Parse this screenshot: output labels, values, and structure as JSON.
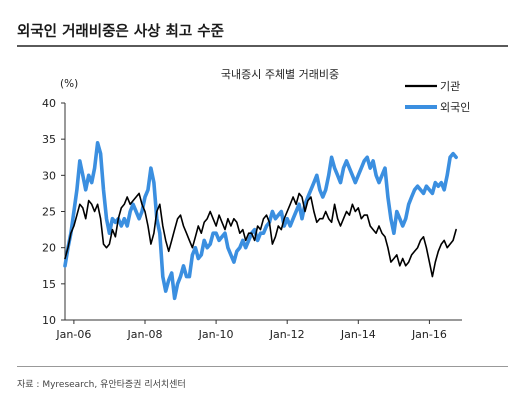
{
  "page": {
    "title": "외국인 거래비중은 사상 최고 수준",
    "source": "자료 : Myresearch, 유안타증권 리서치센터"
  },
  "colors": {
    "institution": "#000000",
    "foreign": "#3b8fe0",
    "axis": "#333333"
  },
  "chart_data": {
    "type": "line",
    "title": "국내증시 주체별 거래비중",
    "unit_label": "(%)",
    "ylim": [
      10,
      40
    ],
    "y_ticks": [
      10,
      15,
      20,
      25,
      30,
      35,
      40
    ],
    "x_range": [
      "2005-10",
      "2016-12"
    ],
    "x_ticks": [
      "Jan-06",
      "Jan-08",
      "Jan-10",
      "Jan-12",
      "Jan-14",
      "Jan-16"
    ],
    "legend_position": "top-right",
    "grid": false,
    "series": [
      {
        "name": "기관",
        "color": "#000000",
        "points": [
          [
            "2005-10",
            18.5
          ],
          [
            "2005-11",
            20
          ],
          [
            "2005-12",
            22
          ],
          [
            "2006-01",
            23
          ],
          [
            "2006-02",
            24.5
          ],
          [
            "2006-03",
            26
          ],
          [
            "2006-04",
            25.5
          ],
          [
            "2006-05",
            24
          ],
          [
            "2006-06",
            26.5
          ],
          [
            "2006-07",
            26
          ],
          [
            "2006-08",
            25
          ],
          [
            "2006-09",
            26
          ],
          [
            "2006-10",
            24
          ],
          [
            "2006-11",
            20.5
          ],
          [
            "2006-12",
            20
          ],
          [
            "2007-01",
            20.5
          ],
          [
            "2007-02",
            22.5
          ],
          [
            "2007-03",
            21.5
          ],
          [
            "2007-04",
            24
          ],
          [
            "2007-05",
            25.5
          ],
          [
            "2007-06",
            26
          ],
          [
            "2007-07",
            27
          ],
          [
            "2007-08",
            26
          ],
          [
            "2007-09",
            26.5
          ],
          [
            "2007-10",
            27
          ],
          [
            "2007-11",
            27.5
          ],
          [
            "2007-12",
            26
          ],
          [
            "2008-01",
            25
          ],
          [
            "2008-02",
            23
          ],
          [
            "2008-03",
            20.5
          ],
          [
            "2008-04",
            22
          ],
          [
            "2008-05",
            25
          ],
          [
            "2008-06",
            26
          ],
          [
            "2008-07",
            23
          ],
          [
            "2008-08",
            21
          ],
          [
            "2008-09",
            19.5
          ],
          [
            "2008-10",
            21
          ],
          [
            "2008-11",
            22.5
          ],
          [
            "2008-12",
            24
          ],
          [
            "2009-01",
            24.5
          ],
          [
            "2009-02",
            23
          ],
          [
            "2009-03",
            22
          ],
          [
            "2009-04",
            21
          ],
          [
            "2009-05",
            20
          ],
          [
            "2009-06",
            21.5
          ],
          [
            "2009-07",
            23
          ],
          [
            "2009-08",
            22
          ],
          [
            "2009-09",
            23.5
          ],
          [
            "2009-10",
            24
          ],
          [
            "2009-11",
            25
          ],
          [
            "2009-12",
            24
          ],
          [
            "2010-01",
            23
          ],
          [
            "2010-02",
            24.5
          ],
          [
            "2010-03",
            23.5
          ],
          [
            "2010-04",
            22.5
          ],
          [
            "2010-05",
            24
          ],
          [
            "2010-06",
            23
          ],
          [
            "2010-07",
            24
          ],
          [
            "2010-08",
            23.5
          ],
          [
            "2010-09",
            22
          ],
          [
            "2010-10",
            22.5
          ],
          [
            "2010-11",
            21
          ],
          [
            "2010-12",
            22
          ],
          [
            "2011-01",
            22
          ],
          [
            "2011-02",
            21
          ],
          [
            "2011-03",
            23
          ],
          [
            "2011-04",
            22.5
          ],
          [
            "2011-05",
            24
          ],
          [
            "2011-06",
            24.5
          ],
          [
            "2011-07",
            23.5
          ],
          [
            "2011-08",
            20.5
          ],
          [
            "2011-09",
            21.5
          ],
          [
            "2011-10",
            23
          ],
          [
            "2011-11",
            22.5
          ],
          [
            "2011-12",
            24
          ],
          [
            "2012-01",
            25
          ],
          [
            "2012-02",
            26
          ],
          [
            "2012-03",
            27
          ],
          [
            "2012-04",
            26
          ],
          [
            "2012-05",
            27.5
          ],
          [
            "2012-06",
            27
          ],
          [
            "2012-07",
            25
          ],
          [
            "2012-08",
            26.5
          ],
          [
            "2012-09",
            27
          ],
          [
            "2012-10",
            25
          ],
          [
            "2012-11",
            23.5
          ],
          [
            "2012-12",
            24
          ],
          [
            "2013-01",
            24
          ],
          [
            "2013-02",
            25
          ],
          [
            "2013-03",
            24
          ],
          [
            "2013-04",
            23.5
          ],
          [
            "2013-05",
            26
          ],
          [
            "2013-06",
            24
          ],
          [
            "2013-07",
            23
          ],
          [
            "2013-08",
            24
          ],
          [
            "2013-09",
            25
          ],
          [
            "2013-10",
            24.5
          ],
          [
            "2013-11",
            26
          ],
          [
            "2013-12",
            25
          ],
          [
            "2014-01",
            25.5
          ],
          [
            "2014-02",
            24
          ],
          [
            "2014-03",
            24.5
          ],
          [
            "2014-04",
            24.5
          ],
          [
            "2014-05",
            23
          ],
          [
            "2014-06",
            22.5
          ],
          [
            "2014-07",
            22
          ],
          [
            "2014-08",
            23
          ],
          [
            "2014-09",
            22
          ],
          [
            "2014-10",
            21.5
          ],
          [
            "2014-11",
            20
          ],
          [
            "2014-12",
            18
          ],
          [
            "2015-01",
            18.5
          ],
          [
            "2015-02",
            19
          ],
          [
            "2015-03",
            17.5
          ],
          [
            "2015-04",
            18.5
          ],
          [
            "2015-05",
            17.5
          ],
          [
            "2015-06",
            18
          ],
          [
            "2015-07",
            19
          ],
          [
            "2015-08",
            19.5
          ],
          [
            "2015-09",
            20
          ],
          [
            "2015-10",
            21
          ],
          [
            "2015-11",
            21.5
          ],
          [
            "2015-12",
            20
          ],
          [
            "2016-01",
            18
          ],
          [
            "2016-02",
            16
          ],
          [
            "2016-03",
            18
          ],
          [
            "2016-04",
            19.5
          ],
          [
            "2016-05",
            20.5
          ],
          [
            "2016-06",
            21
          ],
          [
            "2016-07",
            20
          ],
          [
            "2016-08",
            20.5
          ],
          [
            "2016-09",
            21
          ],
          [
            "2016-10",
            22.5
          ]
        ]
      },
      {
        "name": "외국인",
        "color": "#3b8fe0",
        "points": [
          [
            "2005-10",
            17.5
          ],
          [
            "2005-11",
            20
          ],
          [
            "2005-12",
            22
          ],
          [
            "2006-01",
            25
          ],
          [
            "2006-02",
            28
          ],
          [
            "2006-03",
            32
          ],
          [
            "2006-04",
            30
          ],
          [
            "2006-05",
            28
          ],
          [
            "2006-06",
            30
          ],
          [
            "2006-07",
            29
          ],
          [
            "2006-08",
            31
          ],
          [
            "2006-09",
            34.5
          ],
          [
            "2006-10",
            33
          ],
          [
            "2006-11",
            28
          ],
          [
            "2006-12",
            24
          ],
          [
            "2007-01",
            22
          ],
          [
            "2007-02",
            24
          ],
          [
            "2007-03",
            23.5
          ],
          [
            "2007-04",
            24
          ],
          [
            "2007-05",
            23
          ],
          [
            "2007-06",
            24
          ],
          [
            "2007-07",
            23
          ],
          [
            "2007-08",
            25
          ],
          [
            "2007-09",
            26
          ],
          [
            "2007-10",
            25
          ],
          [
            "2007-11",
            24
          ],
          [
            "2007-12",
            25
          ],
          [
            "2008-01",
            27
          ],
          [
            "2008-02",
            28
          ],
          [
            "2008-03",
            31
          ],
          [
            "2008-04",
            29
          ],
          [
            "2008-05",
            24
          ],
          [
            "2008-06",
            22
          ],
          [
            "2008-07",
            16
          ],
          [
            "2008-08",
            14
          ],
          [
            "2008-09",
            15.5
          ],
          [
            "2008-10",
            16.5
          ],
          [
            "2008-11",
            13
          ],
          [
            "2008-12",
            15
          ],
          [
            "2009-01",
            16
          ],
          [
            "2009-02",
            17.5
          ],
          [
            "2009-03",
            16
          ],
          [
            "2009-04",
            16
          ],
          [
            "2009-05",
            19
          ],
          [
            "2009-06",
            20
          ],
          [
            "2009-07",
            18.5
          ],
          [
            "2009-08",
            19
          ],
          [
            "2009-09",
            21
          ],
          [
            "2009-10",
            20
          ],
          [
            "2009-11",
            20.5
          ],
          [
            "2009-12",
            22
          ],
          [
            "2010-01",
            22
          ],
          [
            "2010-02",
            21
          ],
          [
            "2010-03",
            21.5
          ],
          [
            "2010-04",
            22
          ],
          [
            "2010-05",
            20
          ],
          [
            "2010-06",
            19
          ],
          [
            "2010-07",
            18
          ],
          [
            "2010-08",
            19.5
          ],
          [
            "2010-09",
            20
          ],
          [
            "2010-10",
            21
          ],
          [
            "2010-11",
            20
          ],
          [
            "2010-12",
            21
          ],
          [
            "2011-01",
            22
          ],
          [
            "2011-02",
            22.5
          ],
          [
            "2011-03",
            21
          ],
          [
            "2011-04",
            22
          ],
          [
            "2011-05",
            22
          ],
          [
            "2011-06",
            23
          ],
          [
            "2011-07",
            23.5
          ],
          [
            "2011-08",
            25
          ],
          [
            "2011-09",
            24
          ],
          [
            "2011-10",
            24.5
          ],
          [
            "2011-11",
            25
          ],
          [
            "2011-12",
            23
          ],
          [
            "2012-01",
            24
          ],
          [
            "2012-02",
            23
          ],
          [
            "2012-03",
            24
          ],
          [
            "2012-04",
            25
          ],
          [
            "2012-05",
            26
          ],
          [
            "2012-06",
            24
          ],
          [
            "2012-07",
            26
          ],
          [
            "2012-08",
            27
          ],
          [
            "2012-09",
            28
          ],
          [
            "2012-10",
            29
          ],
          [
            "2012-11",
            30
          ],
          [
            "2012-12",
            28
          ],
          [
            "2013-01",
            27
          ],
          [
            "2013-02",
            28
          ],
          [
            "2013-03",
            30
          ],
          [
            "2013-04",
            32.5
          ],
          [
            "2013-05",
            31
          ],
          [
            "2013-06",
            30
          ],
          [
            "2013-07",
            29
          ],
          [
            "2013-08",
            31
          ],
          [
            "2013-09",
            32
          ],
          [
            "2013-10",
            31
          ],
          [
            "2013-11",
            30
          ],
          [
            "2013-12",
            29
          ],
          [
            "2014-01",
            30
          ],
          [
            "2014-02",
            31
          ],
          [
            "2014-03",
            32
          ],
          [
            "2014-04",
            32.5
          ],
          [
            "2014-05",
            31
          ],
          [
            "2014-06",
            32
          ],
          [
            "2014-07",
            30
          ],
          [
            "2014-08",
            29
          ],
          [
            "2014-09",
            30
          ],
          [
            "2014-10",
            31
          ],
          [
            "2014-11",
            27
          ],
          [
            "2014-12",
            24
          ],
          [
            "2015-01",
            22
          ],
          [
            "2015-02",
            25
          ],
          [
            "2015-03",
            24
          ],
          [
            "2015-04",
            23
          ],
          [
            "2015-05",
            24
          ],
          [
            "2015-06",
            26
          ],
          [
            "2015-07",
            27
          ],
          [
            "2015-08",
            28
          ],
          [
            "2015-09",
            28.5
          ],
          [
            "2015-10",
            28
          ],
          [
            "2015-11",
            27.5
          ],
          [
            "2015-12",
            28.5
          ],
          [
            "2016-01",
            28
          ],
          [
            "2016-02",
            27.5
          ],
          [
            "2016-03",
            29
          ],
          [
            "2016-04",
            28.5
          ],
          [
            "2016-05",
            29
          ],
          [
            "2016-06",
            28
          ],
          [
            "2016-07",
            30
          ],
          [
            "2016-08",
            32.5
          ],
          [
            "2016-09",
            33
          ],
          [
            "2016-10",
            32.5
          ]
        ]
      }
    ]
  }
}
